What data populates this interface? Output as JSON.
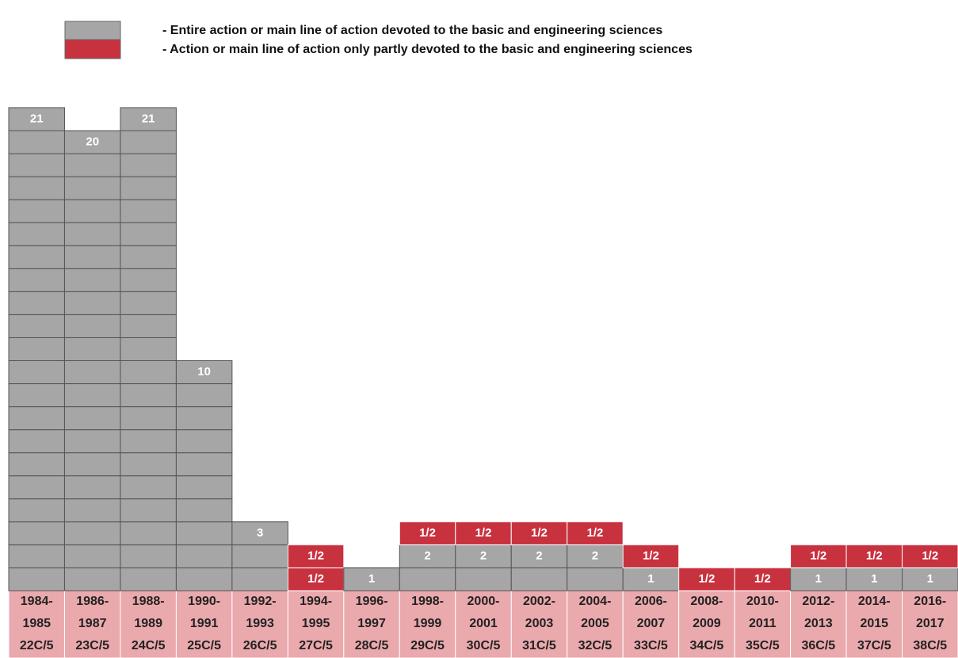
{
  "chart_data": {
    "type": "stacked-blocks",
    "categories": [
      [
        "1984-",
        "1985",
        "22C/5"
      ],
      [
        "1986-",
        "1987",
        "23C/5"
      ],
      [
        "1988-",
        "1989",
        "24C/5"
      ],
      [
        "1990-",
        "1991",
        "25C/5"
      ],
      [
        "1992-",
        "1993",
        "26C/5"
      ],
      [
        "1994-",
        "1995",
        "27C/5"
      ],
      [
        "1996-",
        "1997",
        "28C/5"
      ],
      [
        "1998-",
        "1999",
        "29C/5"
      ],
      [
        "2000-",
        "2001",
        "30C/5"
      ],
      [
        "2002-",
        "2003",
        "31C/5"
      ],
      [
        "2004-",
        "2005",
        "32C/5"
      ],
      [
        "2006-",
        "2007",
        "33C/5"
      ],
      [
        "2008-",
        "2009",
        "34C/5"
      ],
      [
        "2010-",
        "2011",
        "35C/5"
      ],
      [
        "2012-",
        "2013",
        "36C/5"
      ],
      [
        "2014-",
        "2015",
        "37C/5"
      ],
      [
        "2016-",
        "2017",
        "38C/5"
      ]
    ],
    "series": [
      {
        "name": "- Entire action or main line of action devoted to the basic and engineering sciences",
        "color": "#a6a6a6",
        "values": [
          21,
          20,
          21,
          10,
          3,
          0,
          1,
          2,
          2,
          2,
          2,
          1,
          0,
          0,
          1,
          1,
          1
        ]
      },
      {
        "name": "- Action or main line of action only partly devoted to the basic and engineering sciences",
        "color": "#c8323f",
        "block_label": "1/2",
        "values": [
          0,
          0,
          0,
          0,
          0,
          2,
          0,
          1,
          1,
          1,
          1,
          1,
          1,
          1,
          1,
          1,
          1
        ]
      }
    ],
    "category_color": "#eaa9ad"
  }
}
